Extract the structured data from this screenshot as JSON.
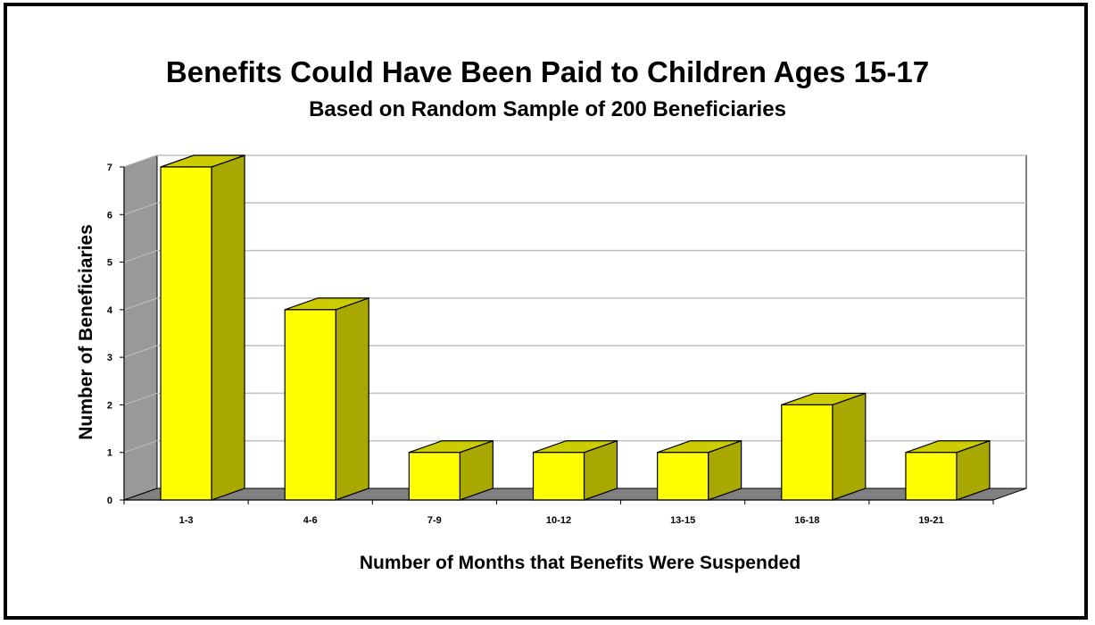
{
  "chart_data": {
    "type": "bar",
    "title": "Benefits Could Have Been Paid to Children Ages 15-17",
    "subtitle": "Based on Random Sample of 200 Beneficiaries",
    "xlabel": "Number of Months that Benefits Were Suspended",
    "ylabel": "Number of Beneficiaries",
    "categories": [
      "1-3",
      "4-6",
      "7-9",
      "10-12",
      "13-15",
      "16-18",
      "19-21"
    ],
    "values": [
      7,
      4,
      1,
      1,
      1,
      2,
      1
    ],
    "ylim": [
      0,
      7
    ],
    "yticks": [
      0,
      1,
      2,
      3,
      4,
      5,
      6,
      7
    ],
    "grid": true,
    "three_d": true,
    "colors": {
      "bar_front": "#ffff00",
      "bar_side": "#a8a800",
      "bar_top": "#cccc00",
      "floor": "#808080",
      "back_wall": "#ffffff",
      "side_wall": "#999999",
      "gridline": "#c0c0c0"
    }
  }
}
